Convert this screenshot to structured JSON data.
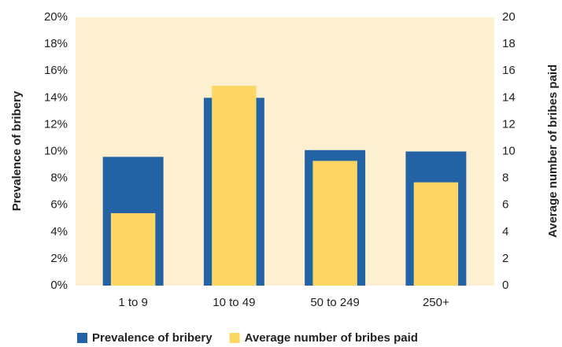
{
  "chart_data": {
    "type": "bar",
    "categories": [
      "1 to 9",
      "10 to 49",
      "50 to 249",
      "250+"
    ],
    "series": [
      {
        "name": "Prevalence of bribery",
        "color": "#2462a6",
        "values": [
          9.6,
          14.0,
          10.1,
          10.0
        ]
      },
      {
        "name": "Average number of bribes paid",
        "color": "#fdd663",
        "values": [
          5.4,
          14.9,
          9.3,
          7.7
        ],
        "axis": "y2"
      }
    ],
    "ylabel": "Prevalence of bribery",
    "y2label": "Average number of bribes paid",
    "ylim": [
      0,
      20
    ],
    "yticks": [
      {
        "value": 0,
        "label": "0%"
      },
      {
        "value": 2,
        "label": "2%"
      },
      {
        "value": 4,
        "label": "4%"
      },
      {
        "value": 6,
        "label": "6%"
      },
      {
        "value": 8,
        "label": "8%"
      },
      {
        "value": 10,
        "label": "10%"
      },
      {
        "value": 12,
        "label": "12%"
      },
      {
        "value": 14,
        "label": "14%"
      },
      {
        "value": 16,
        "label": "16%"
      },
      {
        "value": 18,
        "label": "18%"
      },
      {
        "value": 20,
        "label": "20%"
      }
    ],
    "y2lim": [
      0,
      20
    ],
    "y2ticks": [
      0,
      2,
      4,
      6,
      8,
      10,
      12,
      14,
      16,
      18,
      20
    ],
    "plot_background": "#fdf0d0",
    "legend": "bottom"
  }
}
